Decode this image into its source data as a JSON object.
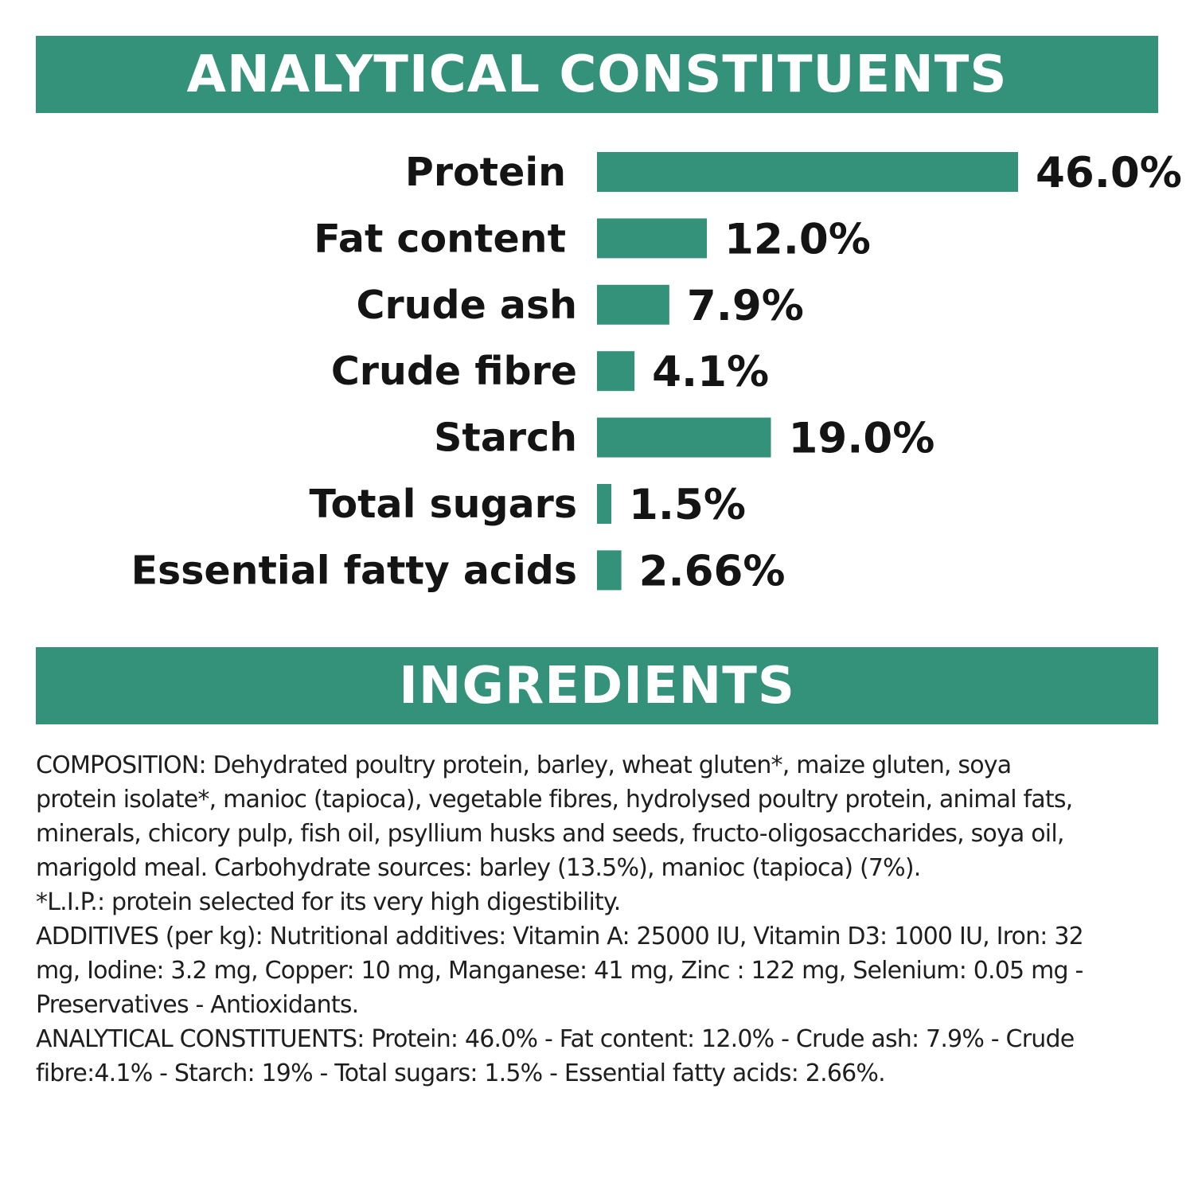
{
  "colors": {
    "accent": "#34917a",
    "text": "#141414",
    "background": "#ffffff"
  },
  "analytical": {
    "title": "ANALYTICAL CONSTITUENTS"
  },
  "chart_data": {
    "type": "bar",
    "orientation": "horizontal",
    "categories": [
      "Protein",
      "Fat content",
      "Crude ash",
      "Crude fibre",
      "Starch",
      "Total sugars",
      "Essential fatty acids"
    ],
    "values": [
      46.0,
      12.0,
      7.9,
      4.1,
      19.0,
      1.5,
      2.66
    ],
    "value_labels": [
      "46.0%",
      "12.0%",
      "7.9%",
      "4.1%",
      "19.0%",
      "1.5%",
      "2.66%"
    ],
    "unit": "%",
    "grid": false,
    "legend": "none",
    "bar_color": "#34917a"
  },
  "ingredients": {
    "title": "INGREDIENTS",
    "lines": [
      "COMPOSITION: Dehydrated poultry protein, barley, wheat gluten*, maize gluten, soya",
      "protein isolate*, manioc (tapioca), vegetable fibres, hydrolysed poultry protein, animal fats,",
      "minerals, chicory pulp, fish oil, psyllium husks and seeds, fructo-oligosaccharides, soya oil,",
      "marigold meal. Carbohydrate sources: barley (13.5%), manioc (tapioca) (7%).",
      "*L.I.P.: protein selected for its very high digestibility.",
      "ADDITIVES (per kg): Nutritional additives: Vitamin A: 25000 IU, Vitamin D3: 1000 IU, Iron: 32",
      "mg, Iodine: 3.2 mg, Copper: 10 mg, Manganese: 41 mg, Zinc : 122 mg, Selenium: 0.05 mg -",
      "Preservatives - Antioxidants.",
      "ANALYTICAL CONSTITUENTS: Protein: 46.0% - Fat content: 12.0% - Crude ash: 7.9% - Crude",
      "fibre:4.1% - Starch: 19% - Total sugars: 1.5% - Essential fatty acids: 2.66%."
    ]
  }
}
